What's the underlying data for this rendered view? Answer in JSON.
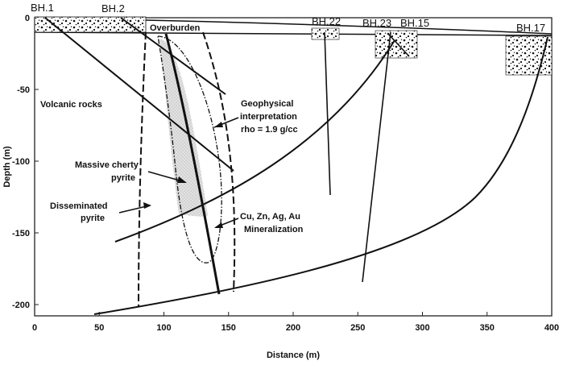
{
  "axes": {
    "xlabel": "Distance (m)",
    "ylabel": "Depth (m)",
    "xlim": [
      0,
      400
    ],
    "ylim": [
      -215,
      0
    ],
    "x_ticks": [
      "0",
      "50",
      "100",
      "150",
      "200",
      "250",
      "300",
      "350",
      "400"
    ],
    "y_ticks": [
      "0",
      "-50",
      "-100",
      "-150",
      "-200"
    ]
  },
  "boreholes": [
    {
      "label": "BH.1"
    },
    {
      "label": "BH.2"
    },
    {
      "label": "BH.22"
    },
    {
      "label": "BH.23"
    },
    {
      "label": "BH.15"
    },
    {
      "label": "BH.17"
    }
  ],
  "labels": {
    "overburden": "Overburden",
    "volcanic": "Volcanic rocks",
    "geo_1": "Geophysical",
    "geo_2": "interpretation",
    "geo_3": "rho = 1.9 g/cc",
    "massive_1": "Massive cherty",
    "massive_2": "pyrite",
    "dissem_1": "Disseminated",
    "dissem_2": "pyrite",
    "min_1": "Cu, Zn, Ag, Au",
    "min_2": "Mineralization"
  },
  "colors": {
    "line": "#111111",
    "ore_fill": "#d9d9d9",
    "frame": "#222222"
  }
}
